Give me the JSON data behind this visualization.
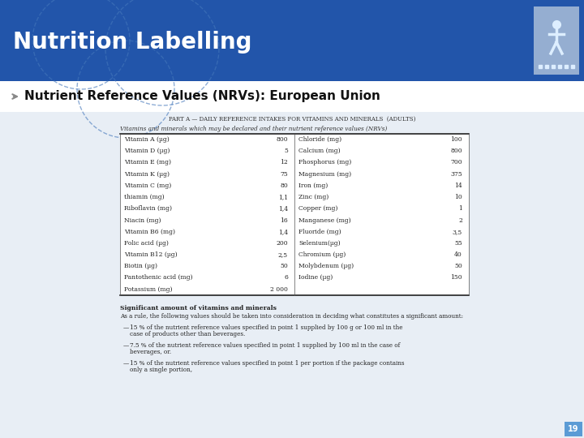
{
  "title": "Nutrition Labelling",
  "subtitle": "Nutrient Reference Values (NRVs): European Union",
  "header_bg": "#2255aa",
  "header_text_color": "#ffffff",
  "slide_bg": "#e8eef5",
  "content_bg": "#e8eef5",
  "page_number": "19",
  "page_num_bg": "#5b9bd5",
  "table_title": "PART A — DAILY REFERENCE INTAKES FOR VITAMINS AND MINERALS  (ADULTS)",
  "table_subtitle": "Vitamins and minerals which may be declared and their nutrient reference values (NRVs)",
  "left_nutrients": [
    [
      "Vitamin A (µg)",
      "800"
    ],
    [
      "Vitamin D (µg)",
      "5"
    ],
    [
      "Vitamin E (mg)",
      "12"
    ],
    [
      "Vitamin K (µg)",
      "75"
    ],
    [
      "Vitamin C (mg)",
      "80"
    ],
    [
      "thiamin (mg)",
      "1,1"
    ],
    [
      "Riboflavin (mg)",
      "1,4"
    ],
    [
      "Niacin (mg)",
      "16"
    ],
    [
      "Vitamin B6 (mg)",
      "1,4"
    ],
    [
      "Folic acid (µg)",
      "200"
    ],
    [
      "Vitamin B12 (µg)",
      "2,5"
    ],
    [
      "Biotin (µg)",
      "50"
    ],
    [
      "Pantothenic acid (mg)",
      "6"
    ],
    [
      "Potassium (mg)",
      "2 000"
    ]
  ],
  "right_nutrients": [
    [
      "Chloride (mg)",
      "100"
    ],
    [
      "Calcium (mg)",
      "800"
    ],
    [
      "Phosphorus (mg)",
      "700"
    ],
    [
      "Magnesium (mg)",
      "375"
    ],
    [
      "Iron (mg)",
      "14"
    ],
    [
      "Zinc (mg)",
      "10"
    ],
    [
      "Copper (mg)",
      "1"
    ],
    [
      "Manganese (mg)",
      "2"
    ],
    [
      "Fluoride (mg)",
      "3,5"
    ],
    [
      "Selenium(µg)",
      "55"
    ],
    [
      "Chromium (µg)",
      "40"
    ],
    [
      "Molybdenum (µg)",
      "50"
    ],
    [
      "Iodine (µg)",
      "150"
    ]
  ],
  "footnote_bold": "Significant amount of vitamins and minerals",
  "footnote_intro": "As a rule, the following values should be taken into consideration in deciding what constitutes a significant amount:",
  "footnotes": [
    "15 % of the nutrient reference values specified in point 1 supplied by 100 g or 100 ml in the case of products other than beverages.",
    "7.5 % of the nutrient reference values specified in point 1 supplied by 100 ml in the case of beverages, or.",
    "15 % of the nutrient reference values specified in point 1 per portion if the package contains only a single portion,"
  ]
}
